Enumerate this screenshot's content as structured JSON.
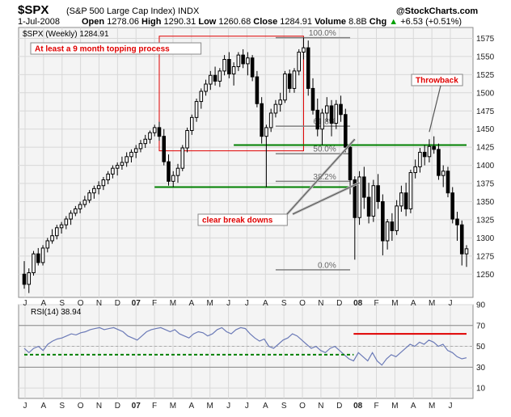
{
  "header": {
    "symbol": "$SPX",
    "description": "(S&P 500 Large Cap Index) INDX",
    "date": "1-Jul-2008",
    "open_label": "Open",
    "open": "1278.06",
    "high_label": "High",
    "high": "1290.31",
    "low_label": "Low",
    "low": "1260.68",
    "close_label": "Close",
    "close": "1284.91",
    "volume_label": "Volume",
    "volume": "8.8B",
    "chg_label": "Chg",
    "chg": "+6.53 (+0.51%)",
    "chg_arrow": "▲",
    "brand": "@StockCharts.com"
  },
  "colors": {
    "candle": "#000000",
    "panel_bg": "#f4f4f4",
    "support": "#008000",
    "resistance": "#e00000",
    "fib": "#808080",
    "callout": "#e00000",
    "rsi_line": "#6b7ab7"
  },
  "chart_data": [
    {
      "type": "candlestick",
      "title": "$SPX (Weekly) 1284.91",
      "panel": "price",
      "ylim": [
        1218,
        1590
      ],
      "yticks": [
        1250,
        1275,
        1300,
        1325,
        1350,
        1375,
        1400,
        1425,
        1450,
        1475,
        1500,
        1525,
        1550,
        1575
      ],
      "x_labels": [
        "J",
        "A",
        "S",
        "O",
        "N",
        "D",
        "07",
        "F",
        "M",
        "A",
        "M",
        "J",
        "J",
        "A",
        "S",
        "O",
        "N",
        "D",
        "08",
        "F",
        "M",
        "A",
        "M",
        "J"
      ],
      "x_year_labels": [
        "07",
        "08"
      ],
      "grid": true,
      "candles": [
        {
          "o": 1250,
          "h": 1268,
          "l": 1230,
          "c": 1236
        },
        {
          "o": 1236,
          "h": 1258,
          "l": 1224,
          "c": 1252
        },
        {
          "o": 1252,
          "h": 1282,
          "l": 1248,
          "c": 1278
        },
        {
          "o": 1278,
          "h": 1286,
          "l": 1262,
          "c": 1266
        },
        {
          "o": 1266,
          "h": 1290,
          "l": 1262,
          "c": 1286
        },
        {
          "o": 1286,
          "h": 1300,
          "l": 1280,
          "c": 1296
        },
        {
          "o": 1296,
          "h": 1312,
          "l": 1292,
          "c": 1303
        },
        {
          "o": 1303,
          "h": 1318,
          "l": 1298,
          "c": 1314
        },
        {
          "o": 1314,
          "h": 1322,
          "l": 1306,
          "c": 1318
        },
        {
          "o": 1318,
          "h": 1330,
          "l": 1312,
          "c": 1326
        },
        {
          "o": 1326,
          "h": 1338,
          "l": 1318,
          "c": 1334
        },
        {
          "o": 1334,
          "h": 1344,
          "l": 1330,
          "c": 1340
        },
        {
          "o": 1340,
          "h": 1350,
          "l": 1334,
          "c": 1346
        },
        {
          "o": 1346,
          "h": 1358,
          "l": 1342,
          "c": 1352
        },
        {
          "o": 1352,
          "h": 1366,
          "l": 1348,
          "c": 1362
        },
        {
          "o": 1362,
          "h": 1372,
          "l": 1354,
          "c": 1368
        },
        {
          "o": 1368,
          "h": 1378,
          "l": 1360,
          "c": 1372
        },
        {
          "o": 1372,
          "h": 1384,
          "l": 1366,
          "c": 1380
        },
        {
          "o": 1380,
          "h": 1392,
          "l": 1374,
          "c": 1388
        },
        {
          "o": 1388,
          "h": 1400,
          "l": 1382,
          "c": 1396
        },
        {
          "o": 1396,
          "h": 1404,
          "l": 1386,
          "c": 1400
        },
        {
          "o": 1400,
          "h": 1412,
          "l": 1394,
          "c": 1404
        },
        {
          "o": 1404,
          "h": 1418,
          "l": 1398,
          "c": 1412
        },
        {
          "o": 1412,
          "h": 1422,
          "l": 1404,
          "c": 1418
        },
        {
          "o": 1418,
          "h": 1428,
          "l": 1410,
          "c": 1423
        },
        {
          "o": 1423,
          "h": 1435,
          "l": 1418,
          "c": 1430
        },
        {
          "o": 1430,
          "h": 1442,
          "l": 1424,
          "c": 1436
        },
        {
          "o": 1436,
          "h": 1448,
          "l": 1430,
          "c": 1445
        },
        {
          "o": 1445,
          "h": 1456,
          "l": 1440,
          "c": 1452
        },
        {
          "o": 1452,
          "h": 1460,
          "l": 1434,
          "c": 1440
        },
        {
          "o": 1440,
          "h": 1450,
          "l": 1400,
          "c": 1405
        },
        {
          "o": 1405,
          "h": 1415,
          "l": 1372,
          "c": 1378
        },
        {
          "o": 1378,
          "h": 1392,
          "l": 1370,
          "c": 1386
        },
        {
          "o": 1386,
          "h": 1402,
          "l": 1376,
          "c": 1396
        },
        {
          "o": 1396,
          "h": 1428,
          "l": 1392,
          "c": 1424
        },
        {
          "o": 1424,
          "h": 1452,
          "l": 1418,
          "c": 1448
        },
        {
          "o": 1448,
          "h": 1470,
          "l": 1442,
          "c": 1466
        },
        {
          "o": 1466,
          "h": 1492,
          "l": 1460,
          "c": 1488
        },
        {
          "o": 1488,
          "h": 1506,
          "l": 1478,
          "c": 1502
        },
        {
          "o": 1502,
          "h": 1518,
          "l": 1496,
          "c": 1512
        },
        {
          "o": 1512,
          "h": 1530,
          "l": 1504,
          "c": 1524
        },
        {
          "o": 1524,
          "h": 1536,
          "l": 1510,
          "c": 1516
        },
        {
          "o": 1516,
          "h": 1534,
          "l": 1508,
          "c": 1530
        },
        {
          "o": 1530,
          "h": 1552,
          "l": 1524,
          "c": 1546
        },
        {
          "o": 1546,
          "h": 1556,
          "l": 1520,
          "c": 1526
        },
        {
          "o": 1526,
          "h": 1542,
          "l": 1510,
          "c": 1536
        },
        {
          "o": 1536,
          "h": 1556,
          "l": 1530,
          "c": 1552
        },
        {
          "o": 1552,
          "h": 1560,
          "l": 1534,
          "c": 1540
        },
        {
          "o": 1540,
          "h": 1556,
          "l": 1524,
          "c": 1548
        },
        {
          "o": 1548,
          "h": 1552,
          "l": 1516,
          "c": 1522
        },
        {
          "o": 1522,
          "h": 1530,
          "l": 1480,
          "c": 1485
        },
        {
          "o": 1485,
          "h": 1494,
          "l": 1430,
          "c": 1440
        },
        {
          "o": 1440,
          "h": 1456,
          "l": 1370,
          "c": 1452
        },
        {
          "o": 1452,
          "h": 1478,
          "l": 1446,
          "c": 1472
        },
        {
          "o": 1472,
          "h": 1490,
          "l": 1466,
          "c": 1484
        },
        {
          "o": 1484,
          "h": 1500,
          "l": 1474,
          "c": 1490
        },
        {
          "o": 1490,
          "h": 1530,
          "l": 1486,
          "c": 1526
        },
        {
          "o": 1526,
          "h": 1532,
          "l": 1500,
          "c": 1506
        },
        {
          "o": 1506,
          "h": 1534,
          "l": 1500,
          "c": 1530
        },
        {
          "o": 1530,
          "h": 1560,
          "l": 1524,
          "c": 1556
        },
        {
          "o": 1556,
          "h": 1576,
          "l": 1546,
          "c": 1562
        },
        {
          "o": 1562,
          "h": 1572,
          "l": 1496,
          "c": 1506
        },
        {
          "o": 1506,
          "h": 1520,
          "l": 1470,
          "c": 1476
        },
        {
          "o": 1476,
          "h": 1492,
          "l": 1440,
          "c": 1450
        },
        {
          "o": 1450,
          "h": 1478,
          "l": 1428,
          "c": 1472
        },
        {
          "o": 1472,
          "h": 1494,
          "l": 1460,
          "c": 1482
        },
        {
          "o": 1482,
          "h": 1490,
          "l": 1440,
          "c": 1458
        },
        {
          "o": 1458,
          "h": 1490,
          "l": 1450,
          "c": 1484
        },
        {
          "o": 1484,
          "h": 1496,
          "l": 1460,
          "c": 1470
        },
        {
          "o": 1470,
          "h": 1478,
          "l": 1418,
          "c": 1425
        },
        {
          "o": 1425,
          "h": 1430,
          "l": 1360,
          "c": 1380
        },
        {
          "o": 1380,
          "h": 1385,
          "l": 1270,
          "c": 1328
        },
        {
          "o": 1328,
          "h": 1392,
          "l": 1318,
          "c": 1384
        },
        {
          "o": 1384,
          "h": 1398,
          "l": 1340,
          "c": 1356
        },
        {
          "o": 1356,
          "h": 1376,
          "l": 1320,
          "c": 1330
        },
        {
          "o": 1330,
          "h": 1380,
          "l": 1322,
          "c": 1372
        },
        {
          "o": 1372,
          "h": 1388,
          "l": 1340,
          "c": 1350
        },
        {
          "o": 1350,
          "h": 1360,
          "l": 1276,
          "c": 1296
        },
        {
          "o": 1296,
          "h": 1326,
          "l": 1284,
          "c": 1322
        },
        {
          "o": 1322,
          "h": 1334,
          "l": 1296,
          "c": 1310
        },
        {
          "o": 1310,
          "h": 1352,
          "l": 1304,
          "c": 1344
        },
        {
          "o": 1344,
          "h": 1372,
          "l": 1336,
          "c": 1362
        },
        {
          "o": 1362,
          "h": 1376,
          "l": 1330,
          "c": 1340
        },
        {
          "o": 1340,
          "h": 1394,
          "l": 1334,
          "c": 1390
        },
        {
          "o": 1390,
          "h": 1408,
          "l": 1382,
          "c": 1398
        },
        {
          "o": 1398,
          "h": 1424,
          "l": 1390,
          "c": 1418
        },
        {
          "o": 1418,
          "h": 1428,
          "l": 1400,
          "c": 1412
        },
        {
          "o": 1412,
          "h": 1436,
          "l": 1404,
          "c": 1426
        },
        {
          "o": 1426,
          "h": 1440,
          "l": 1416,
          "c": 1422
        },
        {
          "o": 1422,
          "h": 1430,
          "l": 1380,
          "c": 1386
        },
        {
          "o": 1386,
          "h": 1400,
          "l": 1370,
          "c": 1392
        },
        {
          "o": 1392,
          "h": 1398,
          "l": 1356,
          "c": 1362
        },
        {
          "o": 1362,
          "h": 1370,
          "l": 1320,
          "c": 1326
        },
        {
          "o": 1326,
          "h": 1336,
          "l": 1296,
          "c": 1318
        },
        {
          "o": 1318,
          "h": 1324,
          "l": 1262,
          "c": 1278
        },
        {
          "o": 1278,
          "h": 1290,
          "l": 1260,
          "c": 1285
        }
      ],
      "horizontal_lines": [
        {
          "y": 1370,
          "x_from_week": 28,
          "x_to_week": 70,
          "color": "#008000"
        },
        {
          "y": 1428,
          "x_from_week": 45,
          "x_to_week": 95,
          "color": "#008000"
        }
      ],
      "fibonacci": {
        "high": 1576,
        "low": 1256,
        "levels": [
          {
            "label": "100.0%",
            "value": 1576
          },
          {
            "label": "61.8%",
            "value": 1454
          },
          {
            "label": "50.0%",
            "value": 1416
          },
          {
            "label": "38.2%",
            "value": 1378
          },
          {
            "label": "0.0%",
            "value": 1256
          }
        ]
      },
      "annotations": {
        "topping": "At least a 9 month topping process",
        "breakdowns": "clear break downs",
        "throwback": "Throwback"
      }
    },
    {
      "type": "line",
      "title": "RSI(14) 38.94",
      "panel": "rsi",
      "ylim": [
        0,
        90
      ],
      "yticks": [
        10,
        30,
        50,
        70,
        90
      ],
      "guides": [
        30,
        70
      ],
      "values": [
        48,
        44,
        48,
        50,
        46,
        52,
        55,
        57,
        58,
        60,
        62,
        61,
        63,
        64,
        66,
        67,
        68,
        66,
        67,
        68,
        66,
        64,
        60,
        58,
        56,
        60,
        64,
        66,
        67,
        68,
        66,
        64,
        66,
        62,
        60,
        58,
        62,
        64,
        63,
        60,
        62,
        66,
        68,
        64,
        62,
        66,
        68,
        67,
        62,
        58,
        55,
        57,
        50,
        48,
        52,
        56,
        58,
        62,
        60,
        56,
        52,
        48,
        50,
        46,
        44,
        48,
        50,
        46,
        42,
        38,
        36,
        44,
        40,
        36,
        44,
        36,
        32,
        38,
        42,
        40,
        44,
        48,
        52,
        50,
        54,
        52,
        56,
        54,
        50,
        52,
        46,
        44,
        40,
        38,
        39
      ],
      "support_line": {
        "y": 42,
        "from_index": 0,
        "to_index": 70,
        "color": "#008000",
        "dashed": true
      },
      "resistance_line": {
        "y": 62,
        "from_index": 70,
        "to_index": 94,
        "color": "#e00000"
      }
    }
  ]
}
